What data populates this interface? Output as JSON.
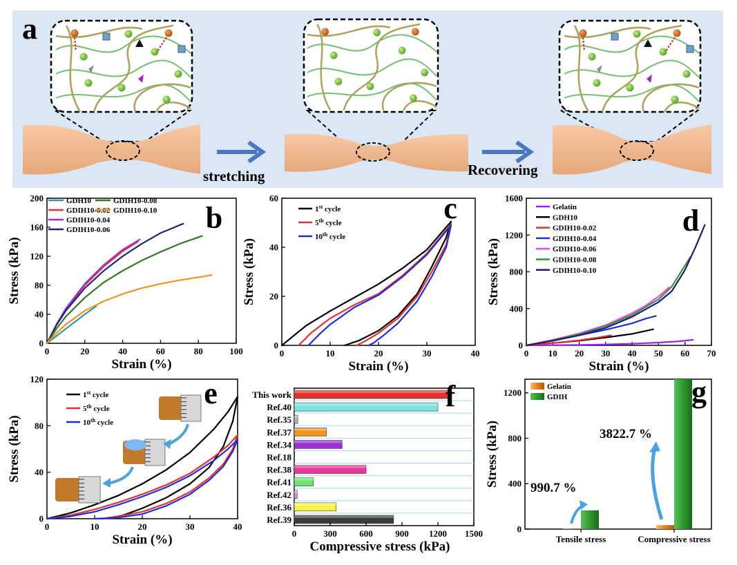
{
  "panel_a": {
    "letter": "a",
    "arrow1_label": "stretching",
    "arrow2_label": "Recovering"
  },
  "chart_data": [
    {
      "id": "b",
      "letter": "b",
      "type": "line",
      "xlabel": "Strain (%)",
      "ylabel": "Stress (kPa)",
      "xlim": [
        0,
        100
      ],
      "ylim": [
        0,
        200
      ],
      "xticks": [
        0,
        20,
        40,
        60,
        80,
        100
      ],
      "yticks": [
        0,
        40,
        80,
        120,
        160,
        200
      ],
      "series": [
        {
          "name": "GDH10",
          "color": "#2e9a9c",
          "x": [
            0,
            5,
            10,
            15,
            20,
            26
          ],
          "y": [
            0,
            10,
            20,
            30,
            40,
            51
          ]
        },
        {
          "name": "GDIH10-0.02",
          "color": "#e8302a",
          "x": [
            0,
            5,
            10,
            20,
            30,
            40,
            48
          ],
          "y": [
            0,
            25,
            47,
            80,
            106,
            127,
            140
          ]
        },
        {
          "name": "GDIH10-0.04",
          "color": "#9b30d9",
          "x": [
            0,
            5,
            10,
            20,
            30,
            40,
            49
          ],
          "y": [
            0,
            26,
            48,
            82,
            108,
            129,
            143
          ]
        },
        {
          "name": "GDIH10-0.06",
          "color": "#1a237e",
          "x": [
            0,
            5,
            10,
            20,
            30,
            40,
            50,
            60,
            72
          ],
          "y": [
            0,
            25,
            45,
            76,
            100,
            120,
            137,
            152,
            165
          ]
        },
        {
          "name": "GDIH10-0.08",
          "color": "#2e7d1c",
          "x": [
            0,
            5,
            10,
            20,
            30,
            40,
            50,
            60,
            70,
            82
          ],
          "y": [
            0,
            20,
            37,
            63,
            84,
            100,
            114,
            126,
            137,
            148
          ]
        },
        {
          "name": "GDIH10-0.10",
          "color": "#f4921e",
          "x": [
            0,
            5,
            10,
            20,
            30,
            40,
            50,
            60,
            70,
            80,
            87
          ],
          "y": [
            0,
            14,
            26,
            45,
            58,
            68,
            76,
            82,
            87,
            91,
            94
          ]
        }
      ]
    },
    {
      "id": "c",
      "letter": "c",
      "type": "line",
      "xlabel": "Strain (%)",
      "ylabel": "Stress (kPa)",
      "xlim": [
        0,
        40
      ],
      "ylim": [
        0,
        60
      ],
      "xticks": [
        0,
        10,
        20,
        30,
        40
      ],
      "yticks": [
        0,
        20,
        40,
        60
      ],
      "legend": [
        {
          "base": "1",
          "sup": "st",
          "rest": " cycle",
          "color": "#000000"
        },
        {
          "base": "5",
          "sup": "th",
          "rest": " cycle",
          "color": "#e8302a"
        },
        {
          "base": "10",
          "sup": "th",
          "rest": " cycle",
          "color": "#1a2ee0"
        }
      ],
      "series": [
        {
          "name": "1st cycle",
          "color": "#000000",
          "x": [
            0,
            5,
            10,
            15,
            20,
            25,
            30,
            35,
            34,
            31,
            28,
            24,
            20,
            16,
            13
          ],
          "y": [
            0,
            8,
            14,
            19.5,
            25,
            31.5,
            39,
            50.5,
            44,
            32,
            21,
            12,
            6,
            2,
            0
          ]
        },
        {
          "name": "5th cycle",
          "color": "#e8302a",
          "x": [
            3.5,
            6,
            10,
            15,
            20,
            25,
            30,
            35,
            34,
            31,
            28,
            24,
            20,
            17,
            15.5
          ],
          "y": [
            0,
            5,
            11,
            16.5,
            21,
            28.5,
            37.5,
            49.5,
            41,
            30,
            20,
            11,
            5,
            1.5,
            0
          ]
        },
        {
          "name": "10th cycle",
          "color": "#1a2ee0",
          "x": [
            5.5,
            8,
            10,
            15,
            20,
            25,
            30,
            35,
            34,
            31,
            28,
            24,
            21,
            19,
            18
          ],
          "y": [
            0,
            5,
            8.5,
            15.5,
            20.5,
            28,
            37,
            49,
            40,
            28,
            18,
            9,
            4,
            1,
            0
          ]
        }
      ]
    },
    {
      "id": "d",
      "letter": "d",
      "type": "line",
      "xlabel": "Strain (%)",
      "ylabel": "Stress (kPa)",
      "xlim": [
        0,
        70
      ],
      "ylim": [
        0,
        1600
      ],
      "xticks": [
        0,
        10,
        20,
        30,
        40,
        50,
        60,
        70
      ],
      "yticks": [
        0,
        400,
        800,
        1200,
        1600
      ],
      "series": [
        {
          "name": "Gelatin",
          "color": "#a020f0",
          "x": [
            0,
            10,
            20,
            30,
            40,
            50,
            57,
            63
          ],
          "y": [
            0,
            2,
            5,
            10,
            18,
            30,
            42,
            60
          ]
        },
        {
          "name": "GDH10",
          "color": "#000000",
          "x": [
            0,
            10,
            20,
            30,
            40,
            48
          ],
          "y": [
            0,
            25,
            50,
            85,
            125,
            175
          ]
        },
        {
          "name": "GDIH10-0.02",
          "color": "#e8302a",
          "x": [
            0,
            10,
            20,
            27,
            32
          ],
          "y": [
            0,
            25,
            55,
            85,
            110
          ]
        },
        {
          "name": "GDIH10-0.04",
          "color": "#1a2ee0",
          "x": [
            0,
            10,
            20,
            30,
            40,
            45,
            49
          ],
          "y": [
            0,
            50,
            110,
            170,
            240,
            290,
            320
          ]
        },
        {
          "name": "GDIH10-0.06",
          "color": "#ff3dff",
          "x": [
            0,
            10,
            20,
            30,
            40,
            45,
            50,
            54
          ],
          "y": [
            0,
            60,
            130,
            220,
            350,
            430,
            530,
            630
          ]
        },
        {
          "name": "GDIH10-0.08",
          "color": "#2e9a2e",
          "x": [
            0,
            10,
            20,
            30,
            40,
            50,
            55,
            62
          ],
          "y": [
            0,
            55,
            120,
            210,
            330,
            500,
            640,
            960
          ]
        },
        {
          "name": "GDIH10-0.10",
          "color": "#1a1a7a",
          "x": [
            0,
            10,
            20,
            30,
            40,
            50,
            55,
            60,
            64,
            67.5
          ],
          "y": [
            0,
            50,
            110,
            190,
            310,
            470,
            590,
            820,
            1070,
            1310
          ]
        }
      ]
    },
    {
      "id": "e",
      "letter": "e",
      "type": "line",
      "xlabel": "Strain (%)",
      "ylabel": "Stress (kPa)",
      "xlim": [
        0,
        40
      ],
      "ylim": [
        0,
        120
      ],
      "xticks": [
        0,
        10,
        20,
        30,
        40
      ],
      "yticks": [
        0,
        40,
        80,
        120
      ],
      "legend": [
        {
          "base": "1",
          "sup": "st",
          "rest": " cycle",
          "color": "#000000"
        },
        {
          "base": "5",
          "sup": "th",
          "rest": " cycle",
          "color": "#e8302a"
        },
        {
          "base": "10",
          "sup": "th",
          "rest": " cycle",
          "color": "#1a2ee0"
        }
      ],
      "series": [
        {
          "name": "1st cycle",
          "color": "#000000",
          "x": [
            0,
            5,
            10,
            15,
            20,
            25,
            30,
            35,
            38,
            40,
            39,
            37,
            34,
            30,
            25,
            20,
            16,
            13,
            11
          ],
          "y": [
            0,
            5,
            12,
            20,
            30,
            42,
            57,
            77,
            92,
            105,
            84,
            62,
            44,
            30,
            18,
            9,
            3,
            0.5,
            0
          ]
        },
        {
          "name": "5th cycle",
          "color": "#e8302a",
          "x": [
            0,
            5,
            10,
            15,
            20,
            25,
            30,
            35,
            38,
            40,
            39,
            37,
            34,
            30,
            25,
            20,
            15,
            12,
            10
          ],
          "y": [
            0,
            3,
            8,
            14,
            21,
            29,
            39,
            53,
            63,
            72,
            60,
            47,
            35,
            23,
            13,
            6,
            2,
            0.5,
            0
          ]
        },
        {
          "name": "10th cycle",
          "color": "#1a2ee0",
          "x": [
            0,
            5,
            10,
            15,
            20,
            25,
            30,
            35,
            38,
            40,
            39,
            37,
            34,
            30,
            25,
            20,
            15,
            12,
            10
          ],
          "y": [
            0,
            2,
            6,
            12,
            19,
            27,
            37,
            50,
            60,
            68,
            58,
            45,
            33,
            21,
            11,
            4,
            1,
            0.2,
            0
          ]
        }
      ]
    },
    {
      "id": "f",
      "letter": "f",
      "type": "bar",
      "orientation": "horizontal",
      "xlabel": "Compressive stress (kPa)",
      "xlim": [
        0,
        1500
      ],
      "xticks": [
        0,
        300,
        600,
        900,
        1200,
        1500
      ],
      "categories": [
        "This work",
        "Ref.40",
        "Ref.35",
        "Ref.37",
        "Ref.34",
        "Ref.18",
        "Ref.38",
        "Ref.41",
        "Ref.42",
        "Ref.36",
        "Ref.39"
      ],
      "values": [
        1310,
        1200,
        30,
        270,
        400,
        0,
        600,
        160,
        25,
        350,
        830
      ],
      "colors": [
        "#e8302a",
        "#7fe3e3",
        "#b0b0b0",
        "#f4921e",
        "#9b30d9",
        "#1a2ee0",
        "#e8369a",
        "#6ee66e",
        "#ee82ee",
        "#f7f24a",
        "#3a3a3a"
      ]
    },
    {
      "id": "g",
      "letter": "g",
      "type": "bar",
      "ylabel": "Stress (kPa)",
      "ylim": [
        0,
        1320
      ],
      "yticks": [
        0,
        400,
        800,
        1200
      ],
      "categories": [
        "Tensile stress",
        "Compressive stress"
      ],
      "series": [
        {
          "name": "Gelatin",
          "color": "#f4921e",
          "values": [
            4,
            35
          ]
        },
        {
          "name": "GDIH",
          "color": "#2e9a2e",
          "values": [
            165,
            1320
          ]
        }
      ],
      "annotations": [
        "990.7 %",
        "3822.7 %"
      ]
    }
  ]
}
